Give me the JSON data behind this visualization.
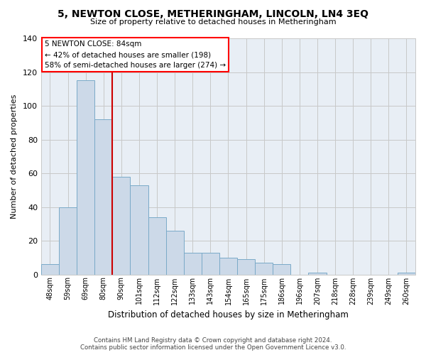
{
  "title": "5, NEWTON CLOSE, METHERINGHAM, LINCOLN, LN4 3EQ",
  "subtitle": "Size of property relative to detached houses in Metheringham",
  "xlabel": "Distribution of detached houses by size in Metheringham",
  "ylabel": "Number of detached properties",
  "categories": [
    "48sqm",
    "59sqm",
    "69sqm",
    "80sqm",
    "90sqm",
    "101sqm",
    "112sqm",
    "122sqm",
    "133sqm",
    "143sqm",
    "154sqm",
    "165sqm",
    "175sqm",
    "186sqm",
    "196sqm",
    "207sqm",
    "218sqm",
    "228sqm",
    "239sqm",
    "249sqm",
    "260sqm"
  ],
  "values": [
    6,
    40,
    115,
    92,
    58,
    53,
    34,
    26,
    13,
    13,
    10,
    9,
    7,
    6,
    0,
    1,
    0,
    0,
    0,
    0,
    1
  ],
  "bar_color": "#ccd9e8",
  "bar_edge_color": "#7aaac8",
  "vline_x": 4.0,
  "vline_color": "#cc0000",
  "annotation_box": {
    "text_lines": [
      "5 NEWTON CLOSE: 84sqm",
      "← 42% of detached houses are smaller (198)",
      "58% of semi-detached houses are larger (274) →"
    ]
  },
  "ylim": [
    0,
    140
  ],
  "yticks": [
    0,
    20,
    40,
    60,
    80,
    100,
    120,
    140
  ],
  "footer_line1": "Contains HM Land Registry data © Crown copyright and database right 2024.",
  "footer_line2": "Contains public sector information licensed under the Open Government Licence v3.0.",
  "background_color": "#ffffff",
  "grid_color": "#c8c8c8",
  "plot_bg_color": "#e8eef5"
}
